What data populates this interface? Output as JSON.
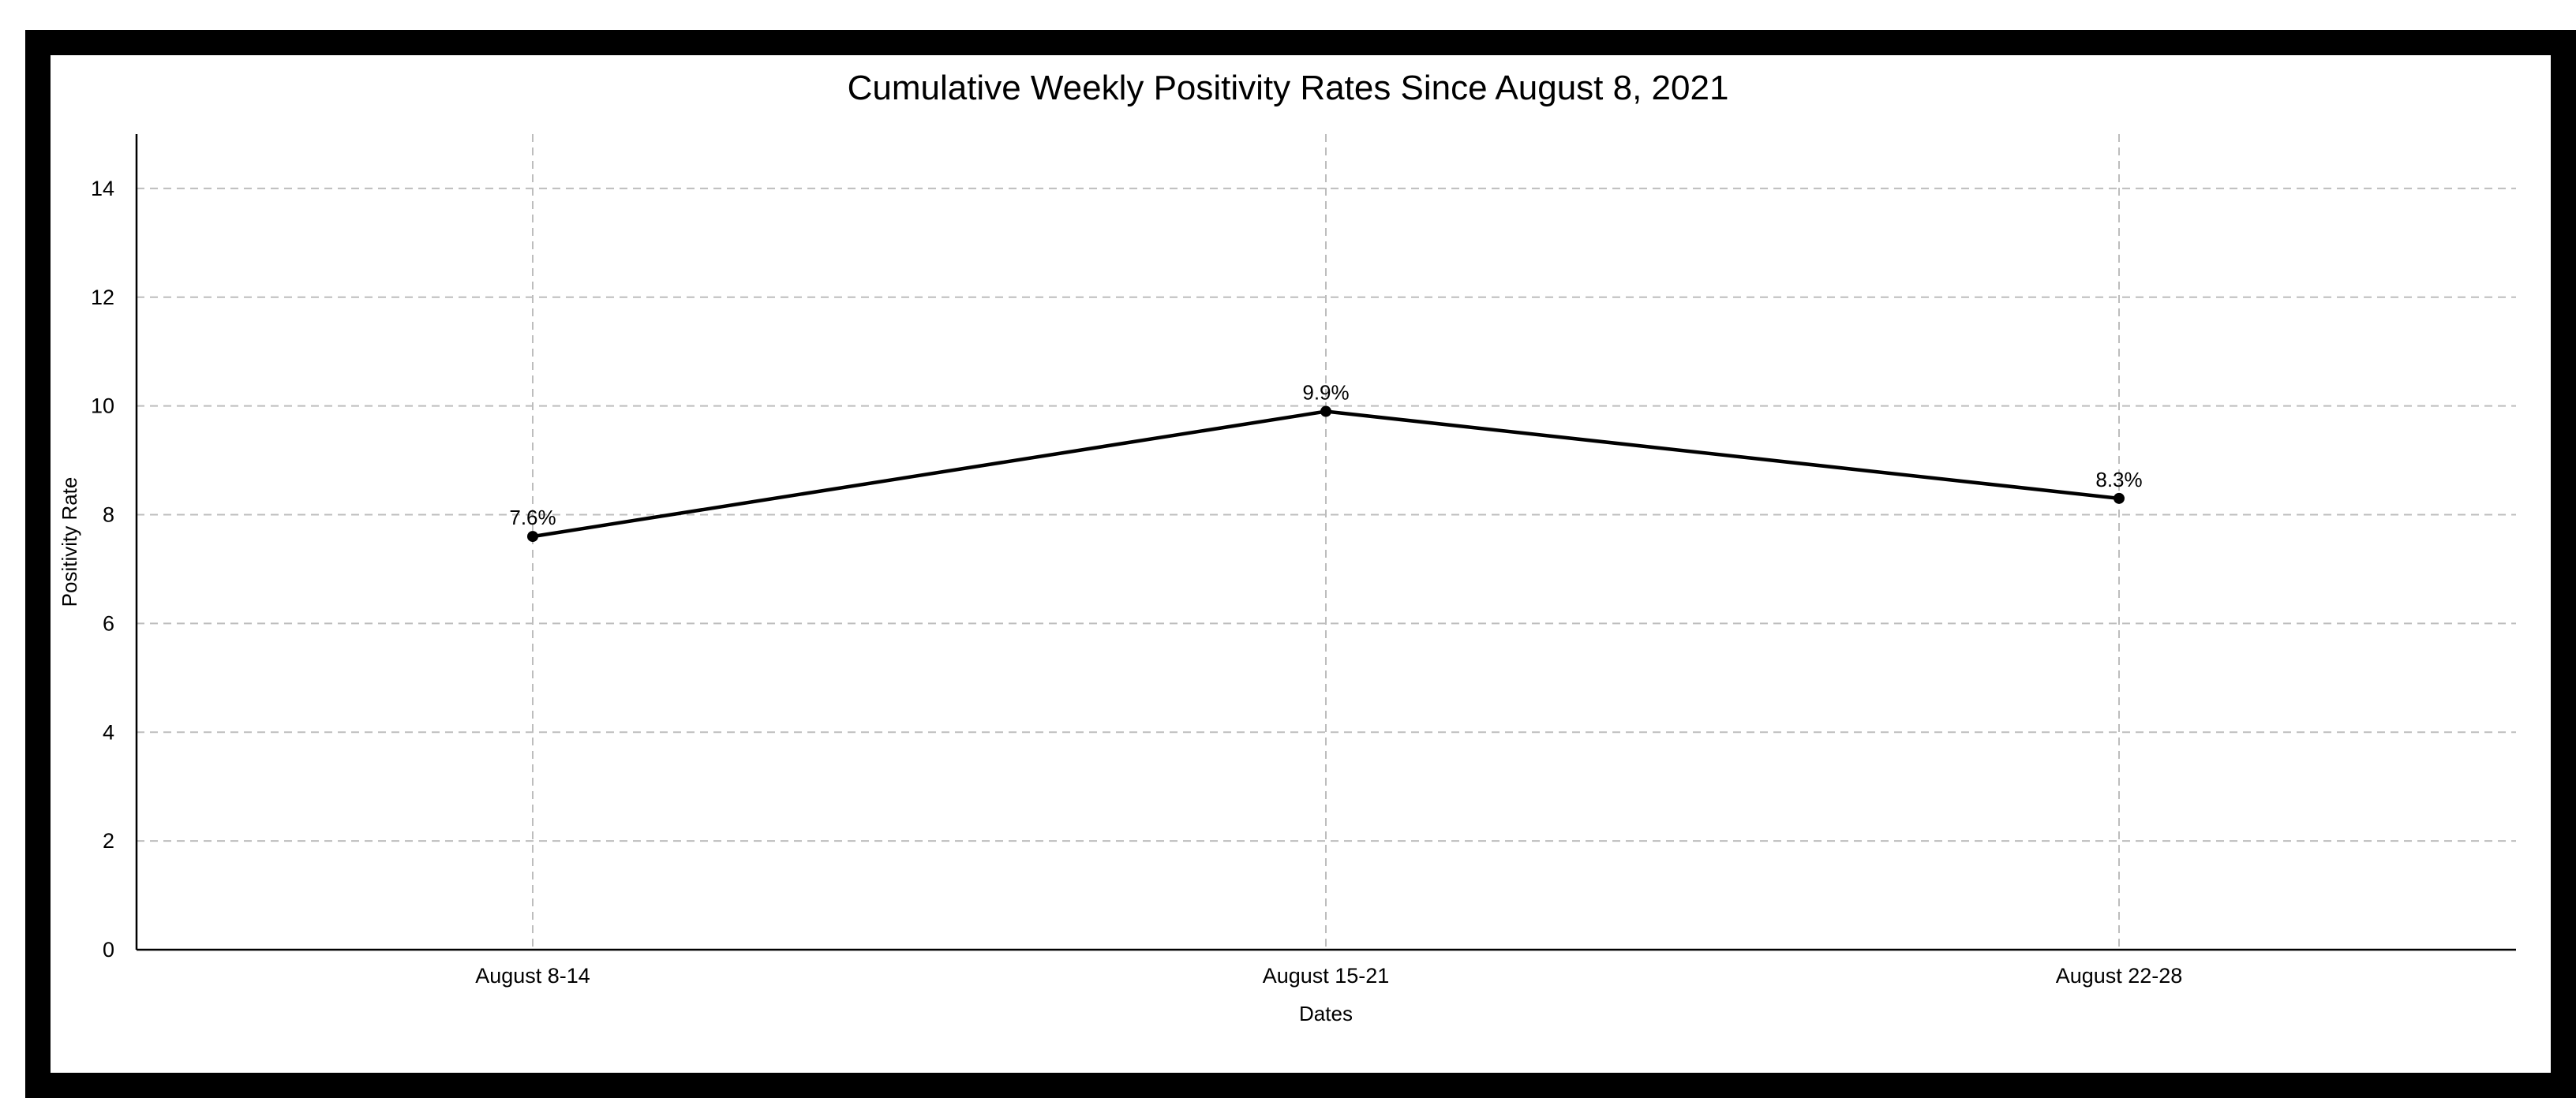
{
  "chart_data": {
    "type": "line",
    "title": "Cumulative Weekly Positivity Rates Since August 8, 2021",
    "xlabel": "Dates",
    "ylabel": "Positivity Rate",
    "categories": [
      "August 8-14",
      "August 15-21",
      "August 22-28"
    ],
    "values": [
      7.6,
      9.9,
      8.3
    ],
    "data_labels": [
      "7.6%",
      "9.9%",
      "8.3%"
    ],
    "ylim": [
      0,
      15
    ],
    "yticks": [
      0,
      2,
      4,
      6,
      8,
      10,
      12,
      14
    ],
    "grid": true,
    "colors": {
      "line": "#000000",
      "grid": "#bdbdbd",
      "frame": "#000000"
    }
  }
}
